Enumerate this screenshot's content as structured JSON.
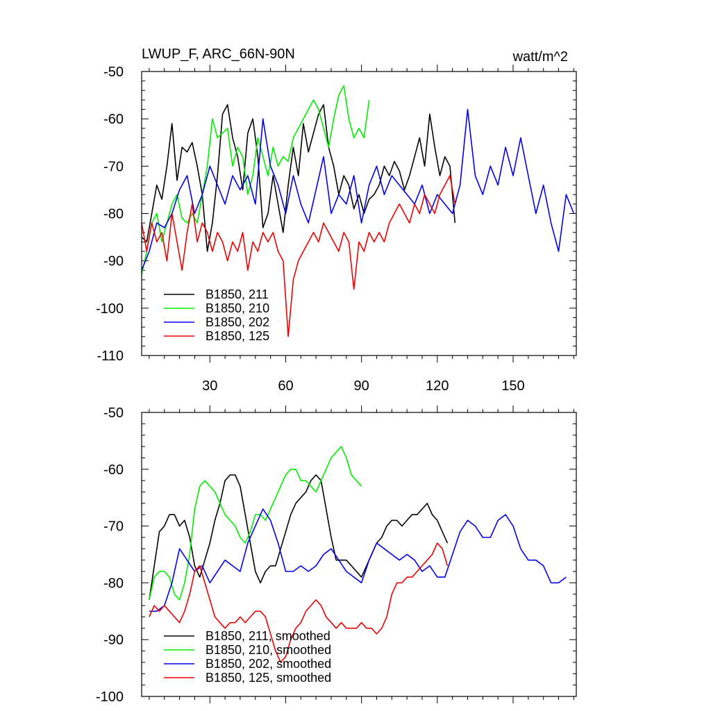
{
  "chart_data": [
    {
      "type": "line",
      "title": "LWUP_F, ARC_66N-90N",
      "units_label": "watt/m^2",
      "xlim": [
        3,
        175
      ],
      "ylim": [
        -110,
        -50
      ],
      "x_ticks": [
        30,
        60,
        90,
        120,
        150
      ],
      "x_tick_labels": [
        "30",
        "60",
        "90",
        "120",
        "150"
      ],
      "y_ticks": [
        -110,
        -100,
        -90,
        -80,
        -70,
        -60,
        -50
      ],
      "y_tick_labels": [
        "-110",
        "-100",
        "-90",
        "-80",
        "-70",
        "-60",
        "-50"
      ],
      "series": [
        {
          "name": "B1850, 211",
          "color": "#000000",
          "x": [
            3,
            5,
            7,
            9,
            11,
            13,
            15,
            17,
            19,
            21,
            23,
            25,
            27,
            29,
            31,
            33,
            35,
            37,
            39,
            41,
            43,
            45,
            47,
            49,
            51,
            53,
            55,
            57,
            59,
            61,
            63,
            65,
            67,
            69,
            71,
            73,
            75,
            77,
            79,
            81,
            83,
            85,
            87,
            89,
            91,
            93,
            95,
            97,
            99,
            101,
            103,
            105,
            107,
            109,
            111,
            113,
            115,
            117,
            119,
            121,
            123,
            125,
            127
          ],
          "values": [
            -85,
            -86,
            -80,
            -74,
            -77,
            -70,
            -61,
            -73,
            -66,
            -67,
            -65,
            -70,
            -76,
            -88,
            -82,
            -72,
            -59,
            -57,
            -64,
            -68,
            -75,
            -63,
            -60,
            -68,
            -83,
            -80,
            -72,
            -78,
            -84,
            -74,
            -66,
            -72,
            -61,
            -67,
            -63,
            -59,
            -57,
            -66,
            -70,
            -76,
            -72,
            -74,
            -79,
            -76,
            -80,
            -77,
            -76,
            -74,
            -70,
            -72,
            -69,
            -71,
            -75,
            -72,
            -68,
            -64,
            -70,
            -59,
            -66,
            -72,
            -68,
            -70,
            -82
          ]
        },
        {
          "name": "B1850, 210",
          "color": "#00ee00",
          "x": [
            3,
            5,
            7,
            9,
            11,
            13,
            15,
            17,
            19,
            21,
            23,
            25,
            27,
            29,
            31,
            33,
            35,
            37,
            39,
            41,
            43,
            45,
            47,
            49,
            51,
            53,
            55,
            57,
            59,
            61,
            63,
            65,
            67,
            69,
            71,
            73,
            75,
            77,
            79,
            81,
            83,
            85,
            87,
            89,
            91,
            93
          ],
          "values": [
            -93,
            -88,
            -82,
            -80,
            -86,
            -82,
            -78,
            -76,
            -81,
            -82,
            -80,
            -82,
            -76,
            -70,
            -60,
            -64,
            -63,
            -62,
            -70,
            -66,
            -68,
            -76,
            -72,
            -64,
            -68,
            -72,
            -66,
            -70,
            -68,
            -69,
            -64,
            -62,
            -60,
            -58,
            -56,
            -58,
            -62,
            -66,
            -60,
            -55,
            -53,
            -60,
            -64,
            -62,
            -64,
            -56
          ]
        },
        {
          "name": "B1850, 202",
          "color": "#0000ee",
          "x": [
            3,
            6,
            9,
            12,
            15,
            18,
            21,
            24,
            27,
            30,
            33,
            36,
            39,
            42,
            45,
            48,
            51,
            54,
            57,
            60,
            63,
            66,
            69,
            72,
            75,
            78,
            81,
            84,
            87,
            90,
            93,
            96,
            99,
            102,
            105,
            108,
            111,
            114,
            117,
            120,
            123,
            126,
            129,
            132,
            135,
            138,
            141,
            144,
            147,
            150,
            153,
            156,
            159,
            162,
            165,
            168,
            171,
            174
          ],
          "values": [
            -92,
            -88,
            -82,
            -83,
            -80,
            -75,
            -72,
            -80,
            -76,
            -70,
            -74,
            -78,
            -72,
            -75,
            -72,
            -78,
            -60,
            -70,
            -74,
            -80,
            -72,
            -78,
            -82,
            -75,
            -68,
            -80,
            -76,
            -78,
            -72,
            -82,
            -74,
            -70,
            -76,
            -72,
            -74,
            -76,
            -78,
            -74,
            -80,
            -76,
            -78,
            -80,
            -74,
            -58,
            -72,
            -76,
            -70,
            -74,
            -66,
            -72,
            -64,
            -72,
            -80,
            -74,
            -82,
            -88,
            -76,
            -80
          ]
        },
        {
          "name": "B1850, 125",
          "color": "#ee0000",
          "x": [
            3,
            5,
            7,
            9,
            11,
            13,
            15,
            17,
            19,
            21,
            23,
            25,
            27,
            29,
            31,
            33,
            35,
            37,
            39,
            41,
            43,
            45,
            47,
            49,
            51,
            53,
            55,
            57,
            59,
            61,
            63,
            65,
            67,
            69,
            71,
            73,
            75,
            77,
            79,
            81,
            83,
            85,
            87,
            89,
            91,
            93,
            95,
            97,
            99,
            101,
            103,
            105,
            107,
            109,
            111,
            113,
            115,
            117,
            119,
            121,
            123,
            125,
            127
          ],
          "values": [
            -82,
            -88,
            -82,
            -86,
            -84,
            -90,
            -80,
            -86,
            -92,
            -84,
            -78,
            -86,
            -82,
            -84,
            -88,
            -84,
            -86,
            -90,
            -86,
            -88,
            -84,
            -92,
            -86,
            -88,
            -84,
            -86,
            -84,
            -88,
            -90,
            -106,
            -94,
            -90,
            -88,
            -86,
            -84,
            -86,
            -82,
            -84,
            -86,
            -88,
            -84,
            -86,
            -96,
            -86,
            -88,
            -84,
            -86,
            -84,
            -86,
            -82,
            -80,
            -78,
            -80,
            -82,
            -78,
            -80,
            -76,
            -78,
            -80,
            -76,
            -74,
            -72,
            -78
          ]
        }
      ]
    },
    {
      "type": "line",
      "title": "",
      "xlim": [
        3,
        175
      ],
      "ylim": [
        -100,
        -50
      ],
      "x_ticks": [
        30,
        60,
        90,
        120,
        150
      ],
      "x_tick_labels": [],
      "y_ticks": [
        -100,
        -90,
        -80,
        -70,
        -60,
        -50
      ],
      "y_tick_labels": [
        "-100",
        "-90",
        "-80",
        "-70",
        "-60",
        "-50"
      ],
      "series": [
        {
          "name": "B1850, 211, smoothed",
          "color": "#000000",
          "x": [
            6,
            8,
            10,
            12,
            14,
            16,
            18,
            20,
            22,
            24,
            26,
            28,
            30,
            32,
            34,
            36,
            38,
            40,
            42,
            44,
            46,
            48,
            50,
            52,
            54,
            56,
            58,
            60,
            62,
            64,
            66,
            68,
            70,
            72,
            74,
            76,
            78,
            80,
            82,
            84,
            86,
            88,
            90,
            92,
            94,
            96,
            98,
            100,
            102,
            104,
            106,
            108,
            110,
            112,
            114,
            116,
            118,
            120,
            122,
            124
          ],
          "values": [
            -83,
            -77,
            -71,
            -70,
            -68,
            -68,
            -70,
            -69,
            -72,
            -77,
            -79,
            -76,
            -73,
            -69,
            -66,
            -62,
            -61,
            -61,
            -63,
            -68,
            -73,
            -78,
            -80,
            -78,
            -77,
            -77,
            -74,
            -71,
            -68,
            -66,
            -65,
            -64,
            -62,
            -61,
            -62,
            -67,
            -72,
            -76,
            -76,
            -76,
            -77,
            -78,
            -79,
            -77,
            -75,
            -73,
            -72,
            -70,
            -69,
            -69,
            -70,
            -69,
            -68,
            -68,
            -67,
            -66,
            -68,
            -69,
            -71,
            -73
          ]
        },
        {
          "name": "B1850, 210, smoothed",
          "color": "#00ee00",
          "x": [
            6,
            8,
            10,
            12,
            14,
            16,
            18,
            20,
            22,
            24,
            26,
            28,
            30,
            32,
            34,
            36,
            38,
            40,
            42,
            44,
            46,
            48,
            50,
            52,
            54,
            56,
            58,
            60,
            62,
            64,
            66,
            68,
            70,
            72,
            74,
            76,
            78,
            80,
            82,
            84,
            86,
            88,
            90
          ],
          "values": [
            -83,
            -79,
            -78,
            -78,
            -79,
            -82,
            -83,
            -80,
            -75,
            -67,
            -63,
            -62,
            -63,
            -64,
            -66,
            -68,
            -69,
            -70,
            -72,
            -73,
            -71,
            -68,
            -68,
            -69,
            -67,
            -65,
            -63,
            -61,
            -60,
            -60,
            -62,
            -62,
            -63,
            -64,
            -62,
            -60,
            -58,
            -57,
            -56,
            -58,
            -61,
            -62,
            -63
          ]
        },
        {
          "name": "B1850, 202, smoothed",
          "color": "#0000ee",
          "x": [
            6,
            9,
            12,
            15,
            18,
            21,
            24,
            27,
            30,
            33,
            36,
            39,
            42,
            45,
            48,
            51,
            54,
            57,
            60,
            63,
            66,
            69,
            72,
            75,
            78,
            81,
            84,
            87,
            90,
            93,
            96,
            99,
            102,
            105,
            108,
            111,
            114,
            117,
            120,
            123,
            126,
            129,
            132,
            135,
            138,
            141,
            144,
            147,
            150,
            153,
            156,
            159,
            162,
            165,
            168,
            171
          ],
          "values": [
            -85,
            -85,
            -84,
            -80,
            -74,
            -76,
            -78,
            -77,
            -80,
            -78,
            -76,
            -77,
            -78,
            -73,
            -70,
            -67,
            -69,
            -73,
            -78,
            -78,
            -77,
            -78,
            -77,
            -75,
            -74,
            -76,
            -78,
            -79,
            -80,
            -76,
            -73,
            -74,
            -75,
            -76,
            -75,
            -76,
            -78,
            -77,
            -79,
            -79,
            -75,
            -71,
            -69,
            -70,
            -72,
            -72,
            -69,
            -68,
            -70,
            -74,
            -76,
            -76,
            -77,
            -80,
            -80,
            -79
          ]
        },
        {
          "name": "B1850, 125, smoothed",
          "color": "#ee0000",
          "x": [
            6,
            8,
            10,
            12,
            14,
            16,
            18,
            20,
            22,
            24,
            26,
            28,
            30,
            32,
            34,
            36,
            38,
            40,
            42,
            44,
            46,
            48,
            50,
            52,
            54,
            56,
            58,
            60,
            62,
            64,
            66,
            68,
            70,
            72,
            74,
            76,
            78,
            80,
            82,
            84,
            86,
            88,
            90,
            92,
            94,
            96,
            98,
            100,
            102,
            104,
            106,
            108,
            110,
            112,
            114,
            116,
            118,
            120,
            122,
            124
          ],
          "values": [
            -86,
            -84,
            -85,
            -84,
            -85,
            -86,
            -87,
            -85,
            -82,
            -78,
            -77,
            -80,
            -83,
            -86,
            -87,
            -88,
            -87,
            -87,
            -86,
            -87,
            -86,
            -85,
            -85,
            -86,
            -89,
            -92,
            -94,
            -93,
            -90,
            -88,
            -87,
            -85,
            -84,
            -83,
            -84,
            -86,
            -87,
            -88,
            -87,
            -88,
            -88,
            -88,
            -87,
            -88,
            -88,
            -89,
            -88,
            -86,
            -82,
            -80,
            -80,
            -79,
            -79,
            -78,
            -77,
            -76,
            -75,
            -73,
            -74,
            -77
          ]
        }
      ]
    }
  ]
}
